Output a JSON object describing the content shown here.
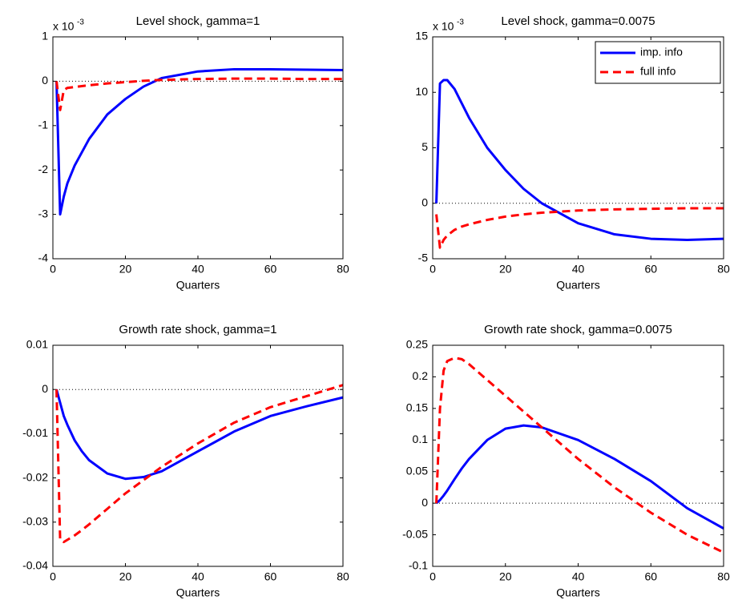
{
  "chart_data": [
    {
      "type": "line",
      "title": "Level shock, gamma=1",
      "xlabel": "Quarters",
      "y_scale_label": "x 10",
      "y_scale_exponent": "-3",
      "x": [
        1,
        2,
        3,
        4,
        6,
        8,
        10,
        15,
        20,
        25,
        30,
        40,
        50,
        60,
        70,
        80
      ],
      "series": [
        {
          "color": "#0000ff",
          "style": "solid",
          "values": [
            0,
            -3,
            -2.6,
            -2.3,
            -1.9,
            -1.6,
            -1.3,
            -0.75,
            -0.4,
            -0.12,
            0.07,
            0.22,
            0.27,
            0.27,
            0.26,
            0.25
          ]
        },
        {
          "color": "#ff0000",
          "style": "dashed",
          "values": [
            0,
            -0.65,
            -0.2,
            -0.15,
            -0.13,
            -0.11,
            -0.09,
            -0.05,
            -0.02,
            0.01,
            0.03,
            0.05,
            0.06,
            0.06,
            0.05,
            0.05
          ]
        }
      ],
      "xlim": [
        0,
        80
      ],
      "xticks": [
        0,
        20,
        40,
        60,
        80
      ],
      "ylim": [
        -4,
        1
      ],
      "yticks": [
        -4,
        -3,
        -2,
        -1,
        0,
        1
      ],
      "hline": 0
    },
    {
      "type": "line",
      "title": "Level shock, gamma=0.0075",
      "xlabel": "Quarters",
      "y_scale_label": "x 10",
      "y_scale_exponent": "-3",
      "x": [
        1,
        2,
        3,
        4,
        6,
        8,
        10,
        15,
        20,
        25,
        30,
        40,
        50,
        60,
        70,
        80
      ],
      "series": [
        {
          "name": "imp. info",
          "color": "#0000ff",
          "style": "solid",
          "values": [
            0,
            10.8,
            11.1,
            11.1,
            10.3,
            9,
            7.7,
            5,
            3,
            1.3,
            0,
            -1.8,
            -2.8,
            -3.2,
            -3.3,
            -3.2
          ]
        },
        {
          "name": "full info",
          "color": "#ff0000",
          "style": "dashed",
          "values": [
            -1,
            -4,
            -3.3,
            -2.9,
            -2.4,
            -2.1,
            -1.9,
            -1.5,
            -1.2,
            -1,
            -0.85,
            -0.65,
            -0.55,
            -0.5,
            -0.45,
            -0.45
          ]
        }
      ],
      "xlim": [
        0,
        80
      ],
      "xticks": [
        0,
        20,
        40,
        60,
        80
      ],
      "ylim": [
        -5,
        15
      ],
      "yticks": [
        -5,
        0,
        5,
        10,
        15
      ],
      "hline": 0,
      "legend": "upper right"
    },
    {
      "type": "line",
      "title": "Growth rate shock, gamma=1",
      "xlabel": "Quarters",
      "x": [
        1,
        2,
        3,
        4,
        6,
        8,
        10,
        15,
        20,
        25,
        30,
        40,
        50,
        60,
        70,
        80
      ],
      "series": [
        {
          "color": "#0000ff",
          "style": "solid",
          "values": [
            0,
            -0.003,
            -0.006,
            -0.008,
            -0.0115,
            -0.014,
            -0.016,
            -0.019,
            -0.0202,
            -0.0198,
            -0.0185,
            -0.014,
            -0.0095,
            -0.006,
            -0.0038,
            -0.0018
          ]
        },
        {
          "color": "#ff0000",
          "style": "dashed",
          "values": [
            0,
            -0.034,
            -0.0345,
            -0.034,
            -0.033,
            -0.0318,
            -0.0305,
            -0.027,
            -0.0235,
            -0.0205,
            -0.0175,
            -0.0122,
            -0.0075,
            -0.004,
            -0.0015,
            0.001
          ]
        }
      ],
      "xlim": [
        0,
        80
      ],
      "xticks": [
        0,
        20,
        40,
        60,
        80
      ],
      "ylim": [
        -0.04,
        0.01
      ],
      "yticks": [
        -0.04,
        -0.03,
        -0.02,
        -0.01,
        0,
        0.01
      ],
      "hline": 0
    },
    {
      "type": "line",
      "title": "Growth rate shock, gamma=0.0075",
      "xlabel": "Quarters",
      "x": [
        1,
        2,
        3,
        4,
        6,
        8,
        10,
        15,
        20,
        25,
        30,
        40,
        50,
        60,
        70,
        80
      ],
      "series": [
        {
          "color": "#0000ff",
          "style": "solid",
          "values": [
            0,
            0.005,
            0.012,
            0.02,
            0.038,
            0.055,
            0.07,
            0.1,
            0.118,
            0.123,
            0.12,
            0.1,
            0.07,
            0.035,
            -0.008,
            -0.04
          ]
        },
        {
          "color": "#ff0000",
          "style": "dashed",
          "values": [
            0,
            0.15,
            0.21,
            0.225,
            0.23,
            0.228,
            0.22,
            0.195,
            0.17,
            0.145,
            0.12,
            0.07,
            0.025,
            -0.015,
            -0.05,
            -0.078
          ]
        }
      ],
      "xlim": [
        0,
        80
      ],
      "xticks": [
        0,
        20,
        40,
        60,
        80
      ],
      "ylim": [
        -0.1,
        0.25
      ],
      "yticks": [
        -0.1,
        -0.05,
        0,
        0.05,
        0.1,
        0.15,
        0.2,
        0.25
      ],
      "hline": 0
    }
  ]
}
